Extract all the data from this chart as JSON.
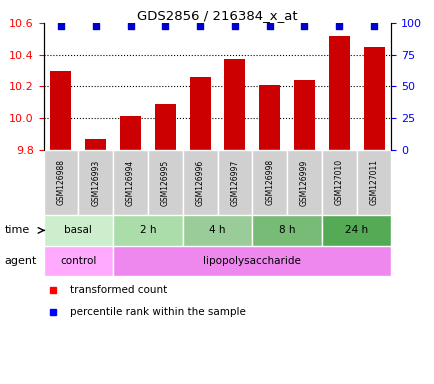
{
  "title": "GDS2856 / 216384_x_at",
  "samples": [
    "GSM126988",
    "GSM126993",
    "GSM126994",
    "GSM126995",
    "GSM126996",
    "GSM126997",
    "GSM126998",
    "GSM126999",
    "GSM127010",
    "GSM127011"
  ],
  "bar_values": [
    10.3,
    9.87,
    10.01,
    10.09,
    10.26,
    10.37,
    10.21,
    10.24,
    10.52,
    10.45
  ],
  "percentile_values": [
    100,
    100,
    100,
    100,
    100,
    100,
    100,
    100,
    100,
    100
  ],
  "bar_color": "#cc0000",
  "dot_color": "#0000cc",
  "ylim_left": [
    9.8,
    10.6
  ],
  "ylim_right": [
    0,
    100
  ],
  "yticks_left": [
    9.8,
    10.0,
    10.2,
    10.4,
    10.6
  ],
  "yticks_right": [
    0,
    25,
    50,
    75,
    100
  ],
  "time_groups": [
    {
      "label": "basal",
      "indices": [
        0,
        1
      ],
      "color": "#ccffcc"
    },
    {
      "label": "2 h",
      "indices": [
        2,
        3
      ],
      "color": "#aaffaa"
    },
    {
      "label": "4 h",
      "indices": [
        4,
        5
      ],
      "color": "#88ee88"
    },
    {
      "label": "8 h",
      "indices": [
        6,
        7
      ],
      "color": "#66dd66"
    },
    {
      "label": "24 h",
      "indices": [
        8,
        9
      ],
      "color": "#44cc44"
    }
  ],
  "agent_groups": [
    {
      "label": "control",
      "indices": [
        0,
        1
      ],
      "color": "#ffaaff"
    },
    {
      "label": "lipopolysaccharide",
      "indices": [
        2,
        9
      ],
      "color": "#ee88ee"
    }
  ],
  "legend_red_label": "transformed count",
  "legend_blue_label": "percentile rank within the sample",
  "time_label": "time",
  "agent_label": "agent",
  "bar_width": 0.6
}
